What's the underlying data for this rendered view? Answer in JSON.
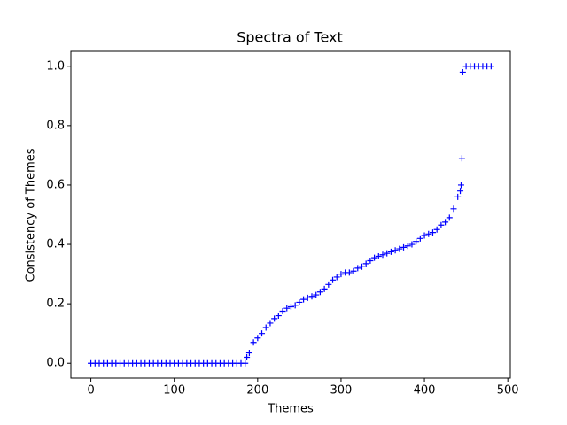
{
  "chart_data": {
    "type": "scatter",
    "title": "Spectra of Text",
    "x_label": "Themes",
    "y_label": "Consistency of Themes",
    "marker": "+",
    "color": "#0000ff",
    "xlim": [
      -24,
      503
    ],
    "ylim": [
      -0.05,
      1.05
    ],
    "xticks": [
      0,
      100,
      200,
      300,
      400,
      500
    ],
    "yticks": [
      {
        "value": 0,
        "label": "0.0"
      },
      0.2,
      0.4,
      0.6,
      0.8,
      {
        "value": 1,
        "label": "1.0"
      }
    ],
    "x": [
      0,
      5,
      10,
      15,
      20,
      25,
      30,
      35,
      40,
      45,
      50,
      55,
      60,
      65,
      70,
      75,
      80,
      85,
      90,
      95,
      100,
      105,
      110,
      115,
      120,
      125,
      130,
      135,
      140,
      145,
      150,
      155,
      160,
      165,
      170,
      175,
      180,
      185,
      187,
      190,
      195,
      200,
      205,
      210,
      215,
      220,
      225,
      230,
      235,
      240,
      245,
      250,
      255,
      260,
      265,
      270,
      275,
      280,
      285,
      290,
      295,
      300,
      305,
      310,
      315,
      320,
      325,
      330,
      335,
      340,
      345,
      350,
      355,
      360,
      365,
      370,
      375,
      380,
      385,
      390,
      395,
      400,
      405,
      410,
      415,
      420,
      425,
      430,
      435,
      440,
      443,
      444,
      445,
      446,
      450,
      455,
      460,
      465,
      470,
      475,
      480
    ],
    "values": [
      0,
      0,
      0,
      0,
      0,
      0,
      0,
      0,
      0,
      0,
      0,
      0,
      0,
      0,
      0,
      0,
      0,
      0,
      0,
      0,
      0,
      0,
      0,
      0,
      0,
      0,
      0,
      0,
      0,
      0,
      0,
      0,
      0,
      0,
      0,
      0,
      0,
      0,
      0.02,
      0.035,
      0.07,
      0.085,
      0.1,
      0.12,
      0.135,
      0.15,
      0.16,
      0.175,
      0.185,
      0.19,
      0.195,
      0.205,
      0.215,
      0.22,
      0.225,
      0.23,
      0.24,
      0.25,
      0.265,
      0.28,
      0.29,
      0.3,
      0.305,
      0.305,
      0.31,
      0.32,
      0.325,
      0.335,
      0.345,
      0.355,
      0.36,
      0.365,
      0.37,
      0.375,
      0.38,
      0.385,
      0.39,
      0.395,
      0.4,
      0.41,
      0.42,
      0.43,
      0.435,
      0.44,
      0.45,
      0.465,
      0.475,
      0.49,
      0.52,
      0.56,
      0.58,
      0.6,
      0.69,
      0.98,
      1,
      1,
      1,
      1,
      1,
      1,
      1
    ]
  }
}
